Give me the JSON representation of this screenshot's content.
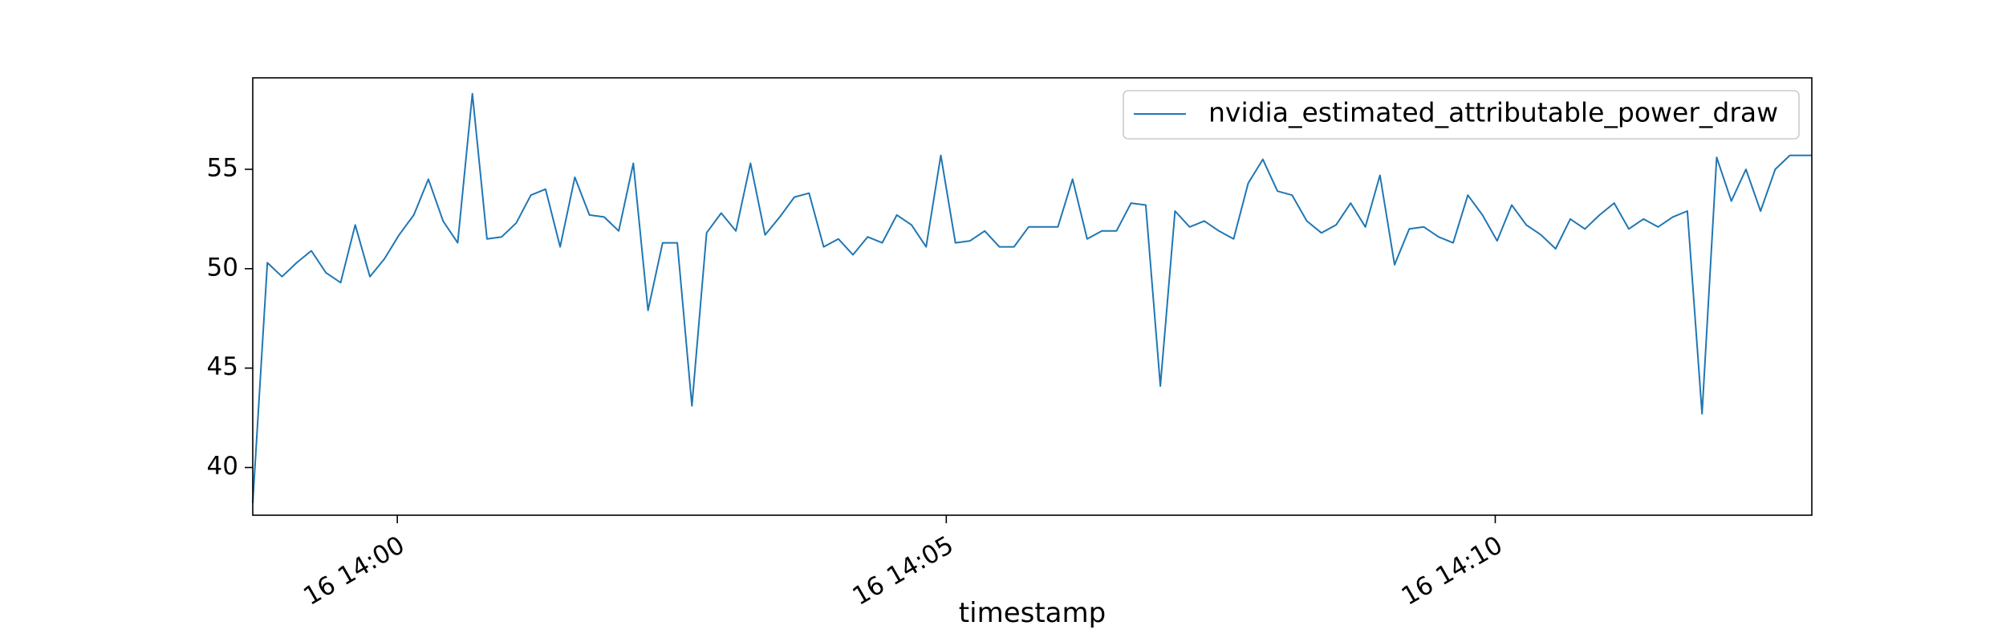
{
  "chart_data": {
    "type": "line",
    "xlabel": "timestamp",
    "ylabel": "",
    "title": "",
    "legend_position": "top-right",
    "grid": false,
    "x_range": [
      "16 13:58:41",
      "16 14:12:53"
    ],
    "ylim": [
      37.6,
      59.6
    ],
    "yticks": [
      {
        "value": 40,
        "label": "40"
      },
      {
        "value": 45,
        "label": "45"
      },
      {
        "value": 50,
        "label": "50"
      },
      {
        "value": 55,
        "label": "55"
      }
    ],
    "xticks": [
      {
        "value": "16 14:00:00",
        "label": "16 14:00"
      },
      {
        "value": "16 14:05:00",
        "label": "16 14:05"
      },
      {
        "value": "16 14:10:00",
        "label": "16 14:10"
      }
    ],
    "series": [
      {
        "name": "nvidia_estimated_attributable_power_draw",
        "color": "#1f77b4",
        "x": [
          "16 13:58:41",
          "16 13:58:49",
          "16 13:58:57",
          "16 13:59:05",
          "16 13:59:13",
          "16 13:59:21",
          "16 13:59:29",
          "16 13:59:37",
          "16 13:59:45",
          "16 13:59:53",
          "16 14:00:01",
          "16 14:00:09",
          "16 14:00:17",
          "16 14:00:25",
          "16 14:00:33",
          "16 14:00:41",
          "16 14:00:49",
          "16 14:00:57",
          "16 14:01:05",
          "16 14:01:13",
          "16 14:01:21",
          "16 14:01:29",
          "16 14:01:37",
          "16 14:01:45",
          "16 14:01:53",
          "16 14:02:01",
          "16 14:02:09",
          "16 14:02:17",
          "16 14:02:25",
          "16 14:02:33",
          "16 14:02:41",
          "16 14:02:49",
          "16 14:02:57",
          "16 14:03:05",
          "16 14:03:13",
          "16 14:03:21",
          "16 14:03:29",
          "16 14:03:37",
          "16 14:03:45",
          "16 14:03:53",
          "16 14:04:01",
          "16 14:04:09",
          "16 14:04:17",
          "16 14:04:25",
          "16 14:04:33",
          "16 14:04:41",
          "16 14:04:49",
          "16 14:04:57",
          "16 14:05:05",
          "16 14:05:13",
          "16 14:05:21",
          "16 14:05:29",
          "16 14:05:37",
          "16 14:05:45",
          "16 14:05:53",
          "16 14:06:01",
          "16 14:06:09",
          "16 14:06:17",
          "16 14:06:25",
          "16 14:06:33",
          "16 14:06:41",
          "16 14:06:49",
          "16 14:06:57",
          "16 14:07:05",
          "16 14:07:13",
          "16 14:07:21",
          "16 14:07:29",
          "16 14:07:37",
          "16 14:07:45",
          "16 14:07:53",
          "16 14:08:01",
          "16 14:08:09",
          "16 14:08:17",
          "16 14:08:25",
          "16 14:08:33",
          "16 14:08:41",
          "16 14:08:49",
          "16 14:08:57",
          "16 14:09:05",
          "16 14:09:13",
          "16 14:09:21",
          "16 14:09:29",
          "16 14:09:37",
          "16 14:09:45",
          "16 14:09:53",
          "16 14:10:01",
          "16 14:10:09",
          "16 14:10:17",
          "16 14:10:25",
          "16 14:10:33",
          "16 14:10:41",
          "16 14:10:49",
          "16 14:10:57",
          "16 14:11:05",
          "16 14:11:13",
          "16 14:11:21",
          "16 14:11:29",
          "16 14:11:37",
          "16 14:11:45",
          "16 14:11:53",
          "16 14:12:01",
          "16 14:12:09",
          "16 14:12:17",
          "16 14:12:25",
          "16 14:12:33",
          "16 14:12:41",
          "16 14:12:49",
          "16 14:12:53"
        ],
        "values": [
          38.2,
          50.3,
          49.6,
          50.3,
          50.9,
          49.8,
          49.3,
          52.2,
          49.6,
          50.5,
          51.7,
          52.7,
          54.5,
          52.4,
          51.3,
          58.8,
          51.5,
          51.6,
          52.3,
          53.7,
          54.0,
          51.1,
          54.6,
          52.7,
          52.6,
          51.9,
          55.3,
          47.9,
          51.3,
          51.3,
          43.1,
          51.8,
          52.8,
          51.9,
          55.3,
          51.7,
          52.6,
          53.6,
          53.8,
          51.1,
          51.5,
          50.7,
          51.6,
          51.3,
          52.7,
          52.2,
          51.1,
          55.7,
          51.3,
          51.4,
          51.9,
          51.1,
          51.1,
          52.1,
          52.1,
          52.1,
          54.5,
          51.5,
          51.9,
          51.9,
          53.3,
          53.2,
          44.1,
          52.9,
          52.1,
          52.4,
          51.9,
          51.5,
          54.3,
          55.5,
          53.9,
          53.7,
          52.4,
          51.8,
          52.2,
          53.3,
          52.1,
          54.7,
          50.2,
          52.0,
          52.1,
          51.6,
          51.3,
          53.7,
          52.7,
          51.4,
          53.2,
          52.2,
          51.7,
          51.0,
          52.5,
          52.0,
          52.7,
          53.3,
          52.0,
          52.5,
          52.1,
          52.6,
          52.9,
          42.7,
          55.6,
          53.4,
          55.0,
          52.9,
          55.0,
          55.7,
          55.7,
          55.7
        ]
      }
    ]
  }
}
